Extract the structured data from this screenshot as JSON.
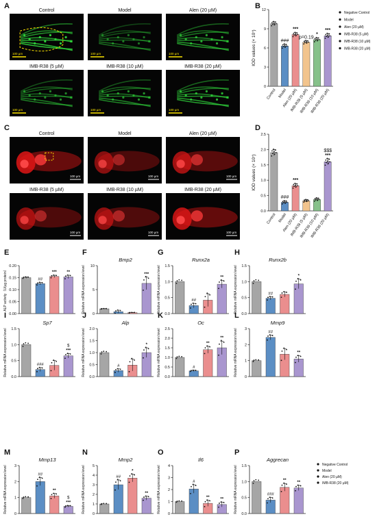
{
  "colors": {
    "negative_control": "#a6a6a6",
    "model": "#5b8ec4",
    "alen": "#ea8e8e",
    "imb5": "#f2c48d",
    "imb10": "#86c18a",
    "imb20": "#a996cf",
    "fluor_green": "#2fd13a",
    "fluor_red": "#e01616",
    "scale_yellow": "#ffe600"
  },
  "panel_letters": [
    "A",
    "B",
    "C",
    "D",
    "E",
    "F",
    "G",
    "H",
    "I",
    "J",
    "K",
    "L",
    "M",
    "N",
    "O",
    "P"
  ],
  "panel_A": {
    "letter": "A",
    "tiles": [
      {
        "label": "Control",
        "scale": "100 µm"
      },
      {
        "label": "Model",
        "scale": "100 µm"
      },
      {
        "label": "Alen (20 µM)",
        "scale": "100 µm"
      },
      {
        "label": "IMB-R38 (5 µM)",
        "scale": "100 µm"
      },
      {
        "label": "IMB-R38 (10 µM)",
        "scale": "100 µm"
      },
      {
        "label": "IMB-R38 (20 µM)",
        "scale": "100 µm"
      }
    ]
  },
  "panel_C": {
    "letter": "C",
    "tiles": [
      {
        "label": "Control",
        "scale": "100 µm"
      },
      {
        "label": "Model",
        "scale": "100 µm"
      },
      {
        "label": "Alen (20 µM)",
        "scale": "100 µm"
      },
      {
        "label": "IMB-R38 (5 µM)",
        "scale": "100 µm"
      },
      {
        "label": "IMB-R38 (10 µM)",
        "scale": "100 µm"
      },
      {
        "label": "IMB-R38 (20 µM)",
        "scale": "100 µm"
      }
    ]
  },
  "legend_top": [
    "Negative Control",
    "Model",
    "Alen (20 µM)",
    "IMB-R38 (5 µM)",
    "IMB-R38 (10 µM)",
    "IMB-R38 (20 µM)"
  ],
  "legend_bottom": [
    "Negative Control",
    "Model",
    "Alen (20 µM)",
    "IMB-R38 (20 µM)"
  ],
  "chart_data": [
    {
      "id": "B",
      "type": "bar",
      "ylabel": "IOD values  (× 10⁷)",
      "categories": [
        "Control",
        "Model",
        "Alen (20 µM)",
        "IMB-R38 (5 µM)",
        "IMB-R38 (10 µM)",
        "IMB-R38 (20 µM)"
      ],
      "values": [
        9.8,
        6.3,
        8.1,
        6.9,
        7.3,
        7.9
      ],
      "errors": [
        0.3,
        0.3,
        0.3,
        0.25,
        0.3,
        0.35
      ],
      "ylim": [
        0,
        12
      ],
      "yticks": [
        "0",
        "3",
        "6",
        "9",
        "12"
      ],
      "annotations": [
        "",
        "###",
        "***",
        "p=0.19",
        "*",
        "***"
      ]
    },
    {
      "id": "D",
      "type": "bar",
      "ylabel": "IOD values  (× 10⁷)",
      "categories": [
        "Control",
        "Model",
        "Alen (20 µM)",
        "IMB-R38 (5 µM)",
        "IMB-R38 (10 µM)",
        "IMB-R38 (20 µM)"
      ],
      "values": [
        1.9,
        0.28,
        0.82,
        0.33,
        0.37,
        1.6
      ],
      "errors": [
        0.1,
        0.05,
        0.07,
        0.04,
        0.05,
        0.1
      ],
      "ylim": [
        0,
        2.5
      ],
      "yticks": [
        "0.0",
        "0.5",
        "1.0",
        "1.5",
        "2.0",
        "2.5"
      ],
      "annotations": [
        "",
        "###",
        "***",
        "",
        "",
        "$$$\n***"
      ]
    },
    {
      "id": "E",
      "type": "bar",
      "ylabel": "ALP activity（U/μg protein）",
      "values": [
        0.15,
        0.125,
        0.155,
        0.153
      ],
      "errors": [
        0.003,
        0.005,
        0.005,
        0.007
      ],
      "ylim": [
        0,
        0.2
      ],
      "yticks": [
        "0.00",
        "0.05",
        "0.10",
        "0.15",
        "0.20"
      ],
      "annotations": [
        "",
        "##",
        "***",
        "**"
      ]
    },
    {
      "id": "F",
      "type": "bar",
      "title": "Bmp2",
      "ylabel": "Relative mRNA expression level",
      "values": [
        1.0,
        0.4,
        0.2,
        6.3
      ],
      "errors": [
        0.05,
        0.3,
        0.05,
        1.3
      ],
      "ylim": [
        0,
        10
      ],
      "yticks": [
        "0",
        "5",
        "10"
      ],
      "annotations": [
        "",
        "",
        "",
        "***"
      ]
    },
    {
      "id": "G",
      "type": "bar",
      "title": "Runx2a",
      "ylabel": "Relative mRNA expression level",
      "values": [
        1.0,
        0.25,
        0.42,
        0.92
      ],
      "errors": [
        0.0,
        0.07,
        0.2,
        0.12
      ],
      "ylim": [
        0,
        1.5
      ],
      "yticks": [
        "0.0",
        "0.5",
        "1.0",
        "1.5"
      ],
      "annotations": [
        "",
        "##",
        "",
        "**"
      ]
    },
    {
      "id": "H",
      "type": "bar",
      "title": "Runx2b",
      "ylabel": "Relative mRNA expression level",
      "values": [
        1.0,
        0.48,
        0.6,
        0.93
      ],
      "errors": [
        0.0,
        0.05,
        0.08,
        0.15
      ],
      "ylim": [
        0,
        1.5
      ],
      "yticks": [
        "0.0",
        "0.5",
        "1.0",
        "1.5"
      ],
      "annotations": [
        "",
        "##",
        "",
        "*"
      ]
    },
    {
      "id": "I",
      "type": "bar",
      "title": "Sp7",
      "ylabel": "Relative mRNA expression level",
      "values": [
        1.0,
        0.22,
        0.35,
        0.65
      ],
      "errors": [
        0.0,
        0.06,
        0.15,
        0.07
      ],
      "ylim": [
        0,
        1.5
      ],
      "yticks": [
        "0.0",
        "0.5",
        "1.0",
        "1.5"
      ],
      "annotations": [
        "",
        "###",
        "",
        "$\n***"
      ]
    },
    {
      "id": "J",
      "type": "bar",
      "title": "Alp",
      "ylabel": "Relative mRNA expression level",
      "values": [
        1.0,
        0.25,
        0.48,
        1.0
      ],
      "errors": [
        0.0,
        0.07,
        0.25,
        0.2
      ],
      "ylim": [
        0,
        2.0
      ],
      "yticks": [
        "0.0",
        "0.5",
        "1.0",
        "1.5",
        "2.0"
      ],
      "annotations": [
        "",
        "#",
        "",
        "*"
      ]
    },
    {
      "id": "K",
      "type": "bar",
      "title": "Oc",
      "ylabel": "Relative mRNA expression level",
      "values": [
        1.0,
        0.3,
        1.4,
        1.5
      ],
      "errors": [
        0.0,
        0.03,
        0.18,
        0.35
      ],
      "ylim": [
        0,
        2.5
      ],
      "yticks": [
        "0.0",
        "0.5",
        "1.0",
        "1.5",
        "2.0",
        "2.5"
      ],
      "annotations": [
        "",
        "#",
        "**",
        "**"
      ]
    },
    {
      "id": "L",
      "type": "bar",
      "title": "Mmp9",
      "ylabel": "Relative mRNA expression level",
      "values": [
        1.0,
        2.45,
        1.4,
        1.1
      ],
      "errors": [
        0.0,
        0.15,
        0.35,
        0.2
      ],
      "ylim": [
        0,
        3
      ],
      "yticks": [
        "0",
        "1",
        "2",
        "3"
      ],
      "annotations": [
        "",
        "##",
        "",
        "**"
      ]
    },
    {
      "id": "M",
      "type": "bar",
      "title": "Mmp13",
      "ylabel": "Relative mRNA expression level",
      "values": [
        1.0,
        2.0,
        1.1,
        0.45
      ],
      "errors": [
        0.0,
        0.25,
        0.15,
        0.05
      ],
      "ylim": [
        0,
        3
      ],
      "yticks": [
        "0",
        "1",
        "2",
        "3"
      ],
      "annotations": [
        "",
        "##",
        "**",
        "$\n***"
      ]
    },
    {
      "id": "N",
      "type": "bar",
      "title": "Mmp2",
      "ylabel": "Relative mRNA expression level",
      "values": [
        1.0,
        3.0,
        3.7,
        1.6
      ],
      "errors": [
        0.0,
        0.5,
        0.4,
        0.2
      ],
      "ylim": [
        0,
        5
      ],
      "yticks": [
        "0",
        "1",
        "2",
        "3",
        "4",
        "5"
      ],
      "annotations": [
        "",
        "##",
        "*",
        "**"
      ]
    },
    {
      "id": "O",
      "type": "bar",
      "title": "Il6",
      "ylabel": "Relative mRNA expression level",
      "values": [
        1.0,
        2.05,
        0.85,
        0.75
      ],
      "errors": [
        0.0,
        0.35,
        0.25,
        0.2
      ],
      "ylim": [
        0,
        4
      ],
      "yticks": [
        "0",
        "1",
        "2",
        "3",
        "4"
      ],
      "annotations": [
        "",
        "#",
        "**",
        "**"
      ]
    },
    {
      "id": "P",
      "type": "bar",
      "title": "Aggrecan",
      "ylabel": "Relative mRNA expression level",
      "values": [
        1.0,
        0.42,
        0.82,
        0.8
      ],
      "errors": [
        0.0,
        0.08,
        0.12,
        0.08
      ],
      "ylim": [
        0,
        1.5
      ],
      "yticks": [
        "0.0",
        "0.5",
        "1.0",
        "1.5"
      ],
      "annotations": [
        "",
        "###",
        "**",
        "**"
      ]
    }
  ]
}
